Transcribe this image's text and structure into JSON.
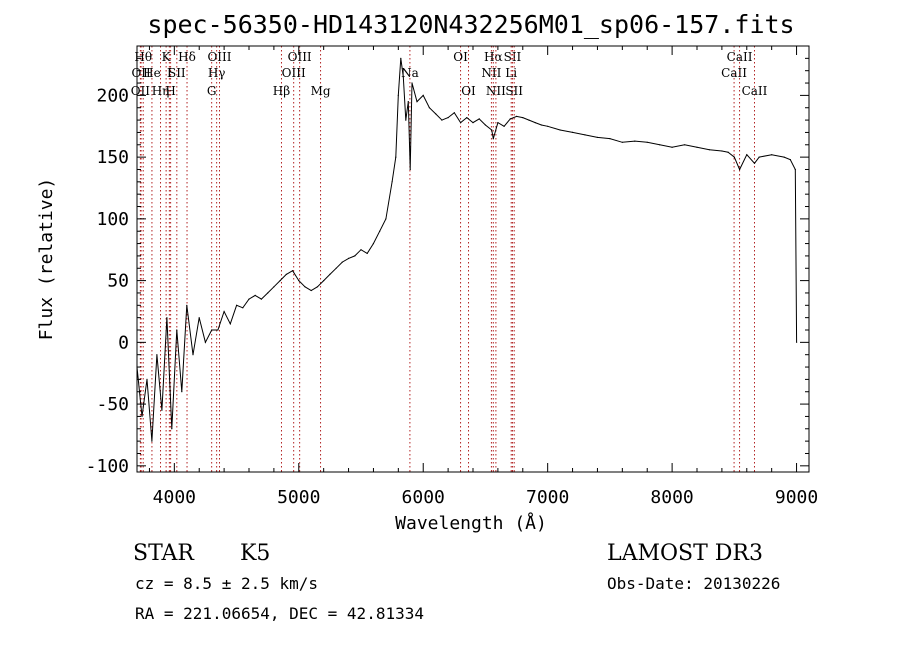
{
  "chart_data": {
    "type": "line",
    "title": "spec-56350-HD143120N432256M01_sp06-157.fits",
    "xlabel": "Wavelength (Å)",
    "ylabel": "Flux (relative)",
    "xlim": [
      3700,
      9100
    ],
    "ylim": [
      -105,
      240
    ],
    "xticks": [
      4000,
      5000,
      6000,
      7000,
      8000,
      9000
    ],
    "yticks": [
      -100,
      -50,
      0,
      50,
      100,
      150,
      200
    ],
    "grid": false,
    "series": [
      {
        "x": [
          3700,
          3740,
          3780,
          3820,
          3860,
          3900,
          3940,
          3980,
          4020,
          4060,
          4100,
          4150,
          4200,
          4250,
          4300,
          4350,
          4400,
          4450,
          4500,
          4550,
          4600,
          4650,
          4700,
          4750,
          4800,
          4850,
          4900,
          4950,
          5000,
          5050,
          5100,
          5150,
          5200,
          5250,
          5300,
          5350,
          5400,
          5450,
          5500,
          5550,
          5600,
          5650,
          5700,
          5750,
          5780,
          5800,
          5820,
          5840,
          5860,
          5880,
          5895,
          5910,
          5950,
          6000,
          6050,
          6100,
          6150,
          6200,
          6250,
          6300,
          6350,
          6400,
          6450,
          6500,
          6550,
          6563,
          6600,
          6650,
          6700,
          6750,
          6800,
          6850,
          6900,
          6950,
          7000,
          7100,
          7200,
          7300,
          7400,
          7500,
          7600,
          7700,
          7800,
          7900,
          8000,
          8100,
          8200,
          8300,
          8400,
          8450,
          8500,
          8542,
          8600,
          8662,
          8700,
          8800,
          8900,
          8950,
          8990,
          9000
        ],
        "values": [
          -20,
          -60,
          -30,
          -80,
          -10,
          -55,
          20,
          -70,
          10,
          -40,
          30,
          -10,
          20,
          0,
          10,
          10,
          25,
          15,
          30,
          28,
          35,
          38,
          35,
          40,
          45,
          50,
          55,
          58,
          50,
          45,
          42,
          45,
          50,
          55,
          60,
          65,
          68,
          70,
          75,
          72,
          80,
          90,
          100,
          130,
          150,
          200,
          230,
          215,
          180,
          195,
          140,
          210,
          195,
          200,
          190,
          185,
          180,
          182,
          186,
          178,
          182,
          178,
          181,
          176,
          172,
          165,
          178,
          175,
          181,
          183,
          182,
          180,
          178,
          176,
          175,
          172,
          170,
          168,
          166,
          165,
          162,
          163,
          162,
          160,
          158,
          160,
          158,
          156,
          155,
          154,
          150,
          140,
          152,
          145,
          150,
          152,
          150,
          148,
          140,
          0
        ]
      }
    ],
    "line_markers": [
      {
        "x": 3750,
        "text": "Hθ",
        "row": 0
      },
      {
        "x": 3733,
        "text": "OII",
        "row": 1
      },
      {
        "x": 3727,
        "text": "OII",
        "row": 2
      },
      {
        "x": 3820,
        "text": "He",
        "row": 1
      },
      {
        "x": 3889,
        "text": "Hη",
        "row": 2
      },
      {
        "x": 3934,
        "text": "K",
        "row": 0
      },
      {
        "x": 3970,
        "text": "H",
        "row": 2
      },
      {
        "x": 3960,
        "text": "I",
        "row": 1
      },
      {
        "x": 4020,
        "text": "SII",
        "row": 1
      },
      {
        "x": 4102,
        "text": "Hδ",
        "row": 0
      },
      {
        "x": 4300,
        "text": "G",
        "row": 2
      },
      {
        "x": 4340,
        "text": "Hγ",
        "row": 1
      },
      {
        "x": 4363,
        "text": "OIII",
        "row": 0
      },
      {
        "x": 4861,
        "text": "Hβ",
        "row": 2
      },
      {
        "x": 4959,
        "text": "OIII",
        "row": 1
      },
      {
        "x": 5007,
        "text": "OIII",
        "row": 0
      },
      {
        "x": 5175,
        "text": "Mg",
        "row": 2
      },
      {
        "x": 5893,
        "text": "Na",
        "row": 1
      },
      {
        "x": 6300,
        "text": "OI",
        "row": 0
      },
      {
        "x": 6364,
        "text": "OI",
        "row": 2
      },
      {
        "x": 6548,
        "text": "NII",
        "row": 1
      },
      {
        "x": 6563,
        "text": "Hα",
        "row": 0
      },
      {
        "x": 6584,
        "text": "NII",
        "row": 2
      },
      {
        "x": 6717,
        "text": "SII",
        "row": 0
      },
      {
        "x": 6707,
        "text": "Li",
        "row": 1
      },
      {
        "x": 6731,
        "text": "SII",
        "row": 2
      },
      {
        "x": 8498,
        "text": "CaII",
        "row": 1
      },
      {
        "x": 8542,
        "text": "CaII",
        "row": 0
      },
      {
        "x": 8662,
        "text": "CaII",
        "row": 2
      }
    ]
  },
  "info": {
    "class": "STAR",
    "subclass": "K5",
    "survey": "LAMOST DR3",
    "cz": "cz = 8.5 ± 2.5 km/s",
    "obs_date": "Obs-Date: 20130226",
    "coords": "RA = 221.06654, DEC =  42.81334"
  }
}
